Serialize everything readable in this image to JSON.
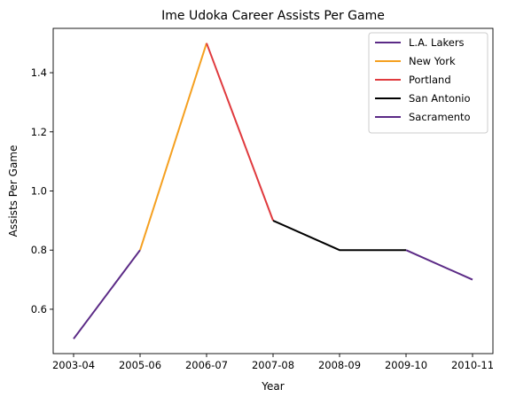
{
  "chart_data": {
    "type": "line",
    "title": "Ime Udoka Career Assists Per Game",
    "xlabel": "Year",
    "ylabel": "Assists Per Game",
    "x": [
      "2003-04",
      "2005-06",
      "2006-07",
      "2007-08",
      "2008-09",
      "2009-10",
      "2010-11"
    ],
    "ylim": [
      0.45,
      1.55
    ],
    "yticks": [
      0.6,
      0.8,
      1.0,
      1.2,
      1.4
    ],
    "ytick_labels": [
      "0.6",
      "0.8",
      "1.0",
      "1.2",
      "1.4"
    ],
    "grid": false,
    "legend_position": "top-right",
    "series": [
      {
        "name": "L.A. Lakers",
        "color": "#5b2a86",
        "x": [
          "2003-04",
          "2005-06"
        ],
        "values": [
          0.5,
          0.8
        ]
      },
      {
        "name": "New York",
        "color": "#f5a020",
        "x": [
          "2005-06",
          "2006-07"
        ],
        "values": [
          0.8,
          1.5
        ]
      },
      {
        "name": "Portland",
        "color": "#e03a3e",
        "x": [
          "2006-07",
          "2007-08"
        ],
        "values": [
          1.5,
          0.9
        ]
      },
      {
        "name": "San Antonio",
        "color": "#000000",
        "x": [
          "2007-08",
          "2008-09",
          "2009-10"
        ],
        "values": [
          0.9,
          0.8,
          0.8
        ]
      },
      {
        "name": "Sacramento",
        "color": "#5b2a86",
        "x": [
          "2009-10",
          "2010-11"
        ],
        "values": [
          0.8,
          0.7
        ]
      }
    ]
  }
}
